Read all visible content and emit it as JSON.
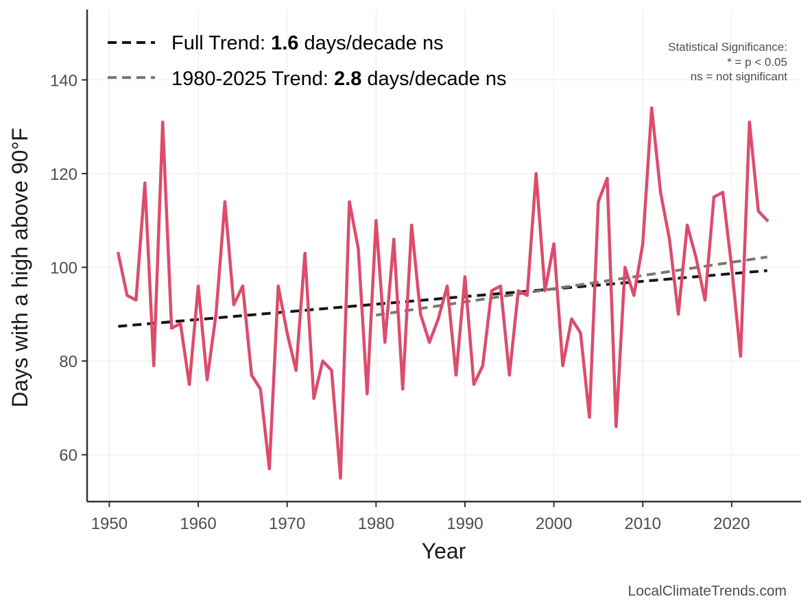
{
  "chart_data": {
    "type": "line",
    "title": "",
    "xlabel": "Year",
    "ylabel": "Days with a high above 90°F",
    "xlim": [
      1947.5,
      2027.8
    ],
    "ylim": [
      50,
      155
    ],
    "x_ticks": [
      1950,
      1960,
      1970,
      1980,
      1990,
      2000,
      2010,
      2020
    ],
    "y_ticks": [
      60,
      80,
      100,
      120,
      140
    ],
    "grid": true,
    "series": [
      {
        "name": "Days above 90°F",
        "color": "#dc4c6c",
        "x": [
          1951,
          1952,
          1953,
          1954,
          1955,
          1956,
          1957,
          1958,
          1959,
          1960,
          1961,
          1962,
          1963,
          1964,
          1965,
          1966,
          1967,
          1968,
          1969,
          1970,
          1971,
          1972,
          1973,
          1974,
          1975,
          1976,
          1977,
          1978,
          1979,
          1980,
          1981,
          1982,
          1983,
          1984,
          1985,
          1986,
          1987,
          1988,
          1989,
          1990,
          1991,
          1992,
          1993,
          1994,
          1995,
          1996,
          1997,
          1998,
          1999,
          2000,
          2001,
          2002,
          2003,
          2004,
          2005,
          2006,
          2007,
          2008,
          2009,
          2010,
          2011,
          2012,
          2013,
          2014,
          2015,
          2016,
          2017,
          2018,
          2019,
          2020,
          2021,
          2022,
          2023,
          2024
        ],
        "values": [
          103,
          94,
          93,
          118,
          79,
          131,
          87,
          88,
          75,
          96,
          76,
          90,
          114,
          92,
          96,
          77,
          74,
          57,
          96,
          86,
          78,
          103,
          72,
          80,
          78,
          55,
          114,
          104,
          73,
          110,
          84,
          106,
          74,
          109,
          90,
          84,
          89,
          96,
          77,
          98,
          75,
          79,
          95,
          96,
          77,
          95,
          94,
          120,
          95,
          105,
          79,
          89,
          86,
          68,
          114,
          119,
          66,
          100,
          94,
          105,
          134,
          116,
          106,
          90,
          109,
          102,
          93,
          115,
          116,
          100,
          81,
          131,
          112,
          110
        ]
      }
    ],
    "trend_lines": [
      {
        "name": "Full Trend",
        "color": "#141414",
        "x": [
          1951,
          2024
        ],
        "values": [
          87.4,
          99.3
        ]
      },
      {
        "name": "1980-2025 Trend",
        "color": "#777777",
        "x": [
          1980,
          2024
        ],
        "values": [
          89.8,
          102.2
        ]
      }
    ],
    "legend": [
      {
        "prefix": "Full Trend: ",
        "value": "1.6",
        "suffix": " days/decade ns",
        "color": "#141414"
      },
      {
        "prefix": "1980-2025 Trend: ",
        "value": "2.8",
        "suffix": " days/decade ns",
        "color": "#777777"
      }
    ],
    "legend_position": "top-left",
    "annotations": [
      "Statistical Significance:",
      "* = p < 0.05",
      "ns = not significant"
    ],
    "credit": "LocalClimateTrends.com"
  }
}
